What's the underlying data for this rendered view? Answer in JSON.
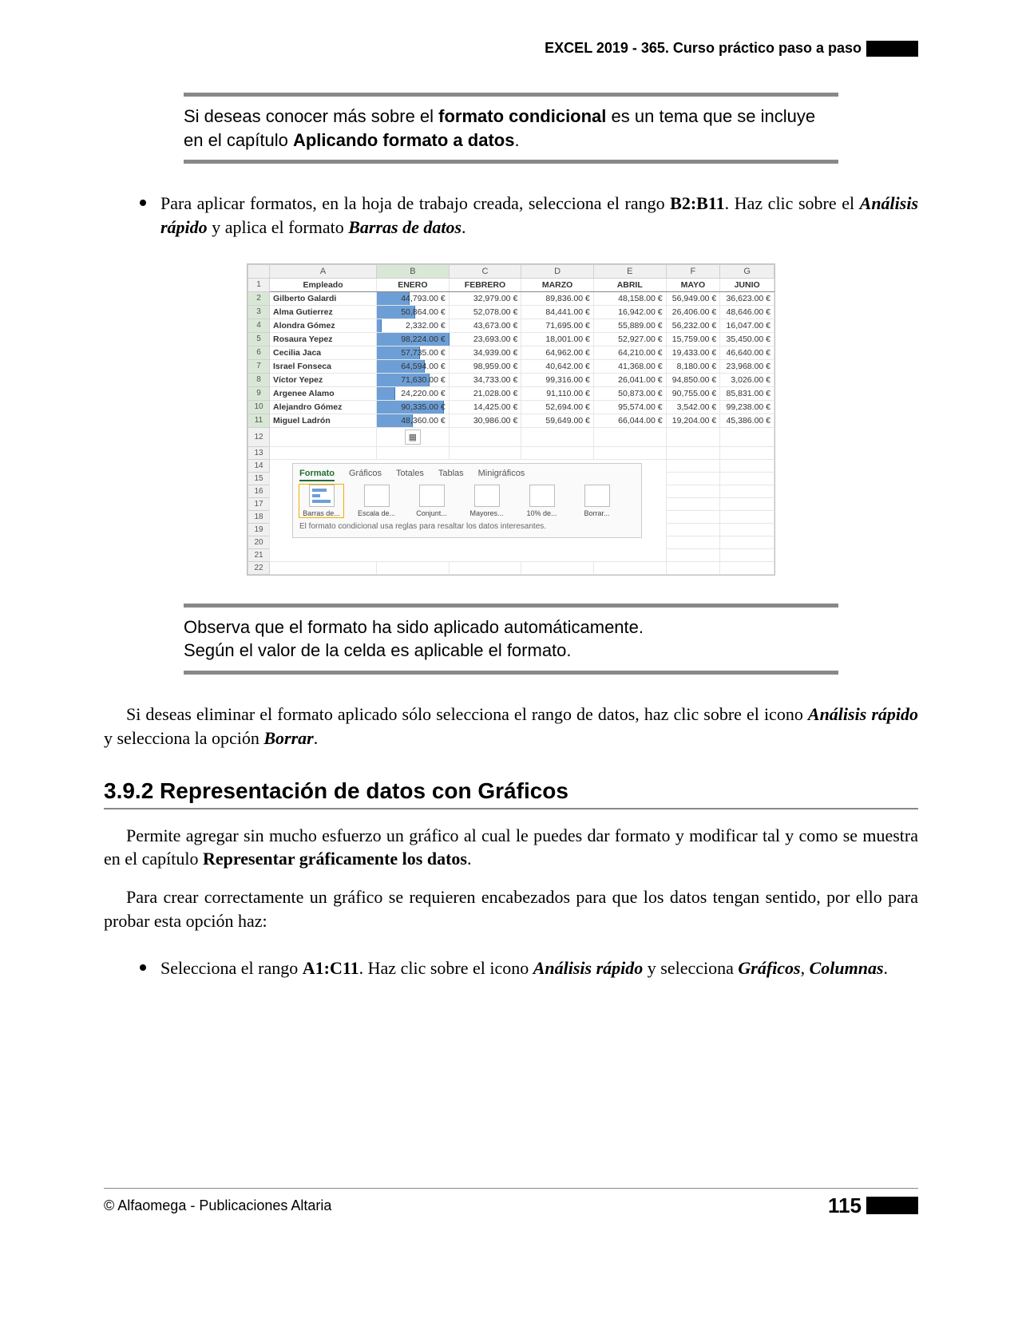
{
  "header": {
    "title": "EXCEL 2019 - 365. Curso práctico paso a paso"
  },
  "callout1": {
    "pre": "Si deseas conocer más sobre el ",
    "b1": "formato condicional",
    "mid": " es un tema que se incluye en el capítulo ",
    "b2": "Aplicando formato a datos",
    "post": "."
  },
  "bullet1": {
    "t1": "Para aplicar formatos, en la hoja de trabajo creada, selecciona el rango ",
    "b1": "B2:B11",
    "t2": ". Haz clic sobre el ",
    "bi1": "Análisis rápido",
    "t3": " y aplica el formato ",
    "bi2": "Barras de datos",
    "t4": "."
  },
  "excel": {
    "columns": [
      "A",
      "B",
      "C",
      "D",
      "E",
      "F",
      "G"
    ],
    "headers": [
      "Empleado",
      "ENERO",
      "FEBRERO",
      "MARZO",
      "ABRIL",
      "MAYO",
      "JUNIO"
    ],
    "rows": [
      {
        "n": 2,
        "name": "Gilberto Galardi",
        "vals": [
          "44,793.00 €",
          "32,979.00 €",
          "89,836.00 €",
          "48,158.00 €",
          "56,949.00 €",
          "36,623.00 €"
        ],
        "bar": 0.45
      },
      {
        "n": 3,
        "name": "Alma Gutierrez",
        "vals": [
          "50,864.00 €",
          "52,078.00 €",
          "84,441.00 €",
          "16,942.00 €",
          "26,406.00 €",
          "48,646.00 €"
        ],
        "bar": 0.52
      },
      {
        "n": 4,
        "name": "Alondra Gómez",
        "vals": [
          "2,332.00 €",
          "43,673.00 €",
          "71,695.00 €",
          "55,889.00 €",
          "56,232.00 €",
          "16,047.00 €"
        ],
        "bar": 0.05
      },
      {
        "n": 5,
        "name": "Rosaura Yepez",
        "vals": [
          "98,224.00 €",
          "23,693.00 €",
          "18,001.00 €",
          "52,927.00 €",
          "15,759.00 €",
          "35,450.00 €"
        ],
        "bar": 1.0
      },
      {
        "n": 6,
        "name": "Cecilia Jaca",
        "vals": [
          "57,735.00 €",
          "34,939.00 €",
          "64,962.00 €",
          "64,210.00 €",
          "19,433.00 €",
          "46,640.00 €"
        ],
        "bar": 0.59
      },
      {
        "n": 7,
        "name": "Israel Fonseca",
        "vals": [
          "64,594.00 €",
          "98,959.00 €",
          "40,642.00 €",
          "41,368.00 €",
          "8,180.00 €",
          "23,968.00 €"
        ],
        "bar": 0.66
      },
      {
        "n": 8,
        "name": "Víctor Yepez",
        "vals": [
          "71,630.00 €",
          "34,733.00 €",
          "99,316.00 €",
          "26,041.00 €",
          "94,850.00 €",
          "3,026.00 €"
        ],
        "bar": 0.73
      },
      {
        "n": 9,
        "name": "Argenee Alamo",
        "vals": [
          "24,220.00 €",
          "21,028.00 €",
          "91,110.00 €",
          "50,873.00 €",
          "90,755.00 €",
          "85,831.00 €"
        ],
        "bar": 0.25
      },
      {
        "n": 10,
        "name": "Alejandro Gómez",
        "vals": [
          "90,335.00 €",
          "14,425.00 €",
          "52,694.00 €",
          "95,574.00 €",
          "3,542.00 €",
          "99,238.00 €"
        ],
        "bar": 0.92
      },
      {
        "n": 11,
        "name": "Miguel Ladrón",
        "vals": [
          "48,360.00 €",
          "30,986.00 €",
          "59,649.00 €",
          "66,044.00 €",
          "19,204.00 €",
          "45,386.00 €"
        ],
        "bar": 0.49
      }
    ],
    "empty_rows": [
      12,
      13,
      14,
      15,
      16,
      17,
      18,
      19,
      20,
      21,
      22
    ],
    "qa": {
      "tabs": [
        "Formato",
        "Gráficos",
        "Totales",
        "Tablas",
        "Minigráficos"
      ],
      "icons": [
        "Barras de...",
        "Escala de...",
        "Conjunt...",
        "Mayores...",
        "10% de...",
        "Borrar..."
      ],
      "caption": "El formato condicional usa reglas para resaltar los datos interesantes."
    }
  },
  "callout2": {
    "line1": "Observa que el formato ha sido aplicado automáticamente.",
    "line2": "Según el valor de la celda es aplicable el formato."
  },
  "para1": {
    "t1": "Si deseas eliminar el formato aplicado sólo selecciona el rango de datos, haz clic sobre el icono ",
    "bi1": "Análisis rápido",
    "t2": " y selecciona la opción ",
    "bi2": "Borrar",
    "t3": "."
  },
  "heading": "3.9.2 Representación de datos con Gráficos",
  "para2": {
    "t1": "Permite agregar sin mucho esfuerzo un gráfico al cual le puedes dar formato y modificar tal y como se muestra en el capítulo ",
    "b1": "Representar gráficamente los datos",
    "t2": "."
  },
  "para3": "Para crear correctamente un gráfico se requieren encabezados para que los datos tengan sentido, por ello para probar esta opción haz:",
  "bullet2": {
    "t1": "Selecciona el rango ",
    "b1": "A1:C11",
    "t2": ". Haz clic sobre el icono ",
    "bi1": "Análisis rápido",
    "t3": " y selecciona ",
    "bi2": "Gráficos",
    "t4": ", ",
    "bi3": "Columnas",
    "t5": "."
  },
  "footer": {
    "copyright": "© Alfaomega - Publicaciones Altaria",
    "page": "115"
  },
  "colors": {
    "databar": "#6d9fd6",
    "databar_border": "#3577bc",
    "rule": "#888888"
  }
}
